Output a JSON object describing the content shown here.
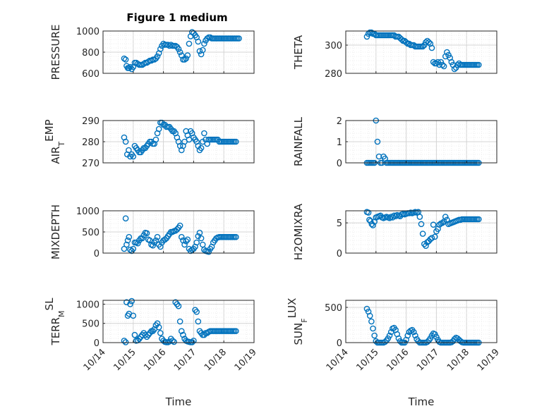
{
  "title": "Figure 1 medium",
  "marker_color": "#0072bd",
  "chart_data": [
    {
      "type": "scatter",
      "ylabel": "PRESSURE",
      "ylim": [
        600,
        1000
      ],
      "yticks": [
        600,
        800,
        1000
      ],
      "xlim": [
        0,
        5
      ],
      "xticks": [
        "10/14",
        "10/15",
        "10/16",
        "10/17",
        "10/18",
        "10/19"
      ],
      "xlabel": "",
      "x": [
        0.7,
        0.75,
        0.78,
        0.82,
        0.86,
        0.9,
        0.95,
        1.0,
        1.05,
        1.1,
        1.15,
        1.2,
        1.25,
        1.3,
        1.35,
        1.4,
        1.45,
        1.5,
        1.55,
        1.6,
        1.65,
        1.7,
        1.75,
        1.8,
        1.85,
        1.9,
        1.95,
        2.0,
        2.05,
        2.1,
        2.15,
        2.2,
        2.25,
        2.3,
        2.35,
        2.4,
        2.45,
        2.5,
        2.55,
        2.6,
        2.65,
        2.7,
        2.75,
        2.8,
        2.85,
        2.9,
        2.95,
        3.0,
        3.05,
        3.1,
        3.15,
        3.2,
        3.25,
        3.3,
        3.35,
        3.4,
        3.45,
        3.5,
        3.55,
        3.6,
        3.65,
        3.7,
        3.75,
        3.8,
        3.85,
        3.9,
        3.95,
        4.0,
        4.05,
        4.1,
        4.15,
        4.2,
        4.25,
        4.3,
        4.35,
        4.4,
        4.45,
        4.5
      ],
      "y": [
        740,
        730,
        670,
        650,
        650,
        660,
        640,
        660,
        700,
        700,
        690,
        680,
        680,
        680,
        690,
        700,
        700,
        710,
        720,
        720,
        730,
        730,
        740,
        760,
        790,
        830,
        860,
        880,
        870,
        870,
        870,
        860,
        870,
        860,
        860,
        860,
        850,
        830,
        800,
        770,
        730,
        730,
        740,
        770,
        880,
        950,
        990,
        980,
        960,
        940,
        900,
        810,
        780,
        820,
        880,
        910,
        930,
        940,
        940,
        930,
        930,
        930,
        930,
        930,
        930,
        930,
        930,
        930,
        930,
        930,
        930,
        930,
        930,
        930,
        930,
        930,
        930,
        930
      ]
    },
    {
      "type": "scatter",
      "ylabel": "THETA",
      "ylim": [
        280,
        310
      ],
      "yticks": [
        280,
        300
      ],
      "xlim": [
        0,
        5
      ],
      "xticks": [
        "10/14",
        "10/15",
        "10/16",
        "10/17",
        "10/18",
        "10/19"
      ],
      "xlabel": "",
      "x": [
        0.7,
        0.75,
        0.8,
        0.85,
        0.9,
        0.95,
        1.0,
        1.05,
        1.1,
        1.15,
        1.2,
        1.25,
        1.3,
        1.35,
        1.4,
        1.45,
        1.5,
        1.55,
        1.6,
        1.65,
        1.7,
        1.75,
        1.8,
        1.85,
        1.9,
        1.95,
        2.0,
        2.05,
        2.1,
        2.15,
        2.2,
        2.25,
        2.3,
        2.35,
        2.4,
        2.45,
        2.5,
        2.55,
        2.6,
        2.65,
        2.7,
        2.75,
        2.8,
        2.85,
        2.9,
        2.95,
        3.0,
        3.05,
        3.1,
        3.15,
        3.2,
        3.25,
        3.3,
        3.35,
        3.4,
        3.45,
        3.5,
        3.55,
        3.6,
        3.65,
        3.7,
        3.75,
        3.8,
        3.85,
        3.9,
        3.95,
        4.0,
        4.05,
        4.1,
        4.15,
        4.2,
        4.25,
        4.3,
        4.35,
        4.4
      ],
      "y": [
        306,
        308,
        309,
        309,
        308,
        308,
        307,
        307,
        307,
        307,
        307,
        307,
        307,
        307,
        307,
        307,
        307,
        307,
        307,
        306,
        306,
        306,
        305,
        304,
        303,
        303,
        302,
        301,
        301,
        300,
        300,
        300,
        299,
        299,
        299,
        299,
        299,
        299,
        300,
        302,
        303,
        302,
        301,
        298,
        288,
        287,
        287,
        288,
        286,
        288,
        286,
        285,
        292,
        295,
        293,
        291,
        288,
        286,
        283,
        284,
        286,
        287,
        286,
        286,
        286,
        286,
        286,
        286,
        286,
        286,
        286,
        286,
        286,
        286,
        286
      ]
    },
    {
      "type": "scatter",
      "ylabel": "AIR_TEMP",
      "ylim": [
        270,
        290
      ],
      "yticks": [
        270,
        280,
        290
      ],
      "xlim": [
        0,
        5
      ],
      "xticks": [
        "10/14",
        "10/15",
        "10/16",
        "10/17",
        "10/18",
        "10/19"
      ],
      "xlabel": "",
      "x": [
        0.7,
        0.75,
        0.8,
        0.85,
        0.9,
        0.95,
        1.0,
        1.05,
        1.1,
        1.15,
        1.2,
        1.25,
        1.3,
        1.35,
        1.4,
        1.45,
        1.5,
        1.55,
        1.6,
        1.65,
        1.7,
        1.75,
        1.8,
        1.85,
        1.9,
        1.95,
        2.0,
        2.05,
        2.1,
        2.15,
        2.2,
        2.25,
        2.3,
        2.35,
        2.4,
        2.45,
        2.5,
        2.55,
        2.6,
        2.65,
        2.7,
        2.75,
        2.8,
        2.85,
        2.9,
        2.95,
        3.0,
        3.05,
        3.1,
        3.15,
        3.2,
        3.25,
        3.3,
        3.35,
        3.4,
        3.45,
        3.5,
        3.55,
        3.6,
        3.65,
        3.7,
        3.75,
        3.8,
        3.85,
        3.9,
        3.95,
        4.0,
        4.05,
        4.1,
        4.15,
        4.2,
        4.25,
        4.3,
        4.35,
        4.4
      ],
      "y": [
        282,
        280,
        274,
        276,
        273,
        274,
        273,
        278,
        277,
        276,
        275,
        275,
        276,
        277,
        277,
        278,
        279,
        280,
        280,
        279,
        279,
        281,
        284,
        286,
        289,
        289,
        288,
        288,
        287,
        287,
        287,
        286,
        285,
        285,
        284,
        282,
        280,
        278,
        276,
        278,
        280,
        285,
        283,
        281,
        285,
        284,
        282,
        281,
        280,
        278,
        276,
        277,
        280,
        284,
        281,
        279,
        281,
        281,
        281,
        281,
        281,
        281,
        281,
        280,
        280,
        280,
        280,
        280,
        280,
        280,
        280,
        280,
        280,
        280,
        280
      ]
    },
    {
      "type": "scatter",
      "ylabel": "RAINFALL",
      "ylim": [
        0,
        2
      ],
      "yticks": [
        0,
        1,
        2
      ],
      "xlim": [
        0,
        5
      ],
      "xticks": [
        "10/14",
        "10/15",
        "10/16",
        "10/17",
        "10/18",
        "10/19"
      ],
      "xlabel": "",
      "x": [
        0.7,
        0.75,
        0.8,
        0.85,
        0.9,
        0.95,
        1.0,
        1.05,
        1.1,
        1.15,
        1.2,
        1.25,
        1.3,
        1.35,
        1.4,
        1.45,
        1.5,
        1.55,
        1.6,
        1.65,
        1.7,
        1.75,
        1.8,
        1.85,
        1.9,
        1.95,
        2.0,
        2.05,
        2.1,
        2.15,
        2.2,
        2.25,
        2.3,
        2.35,
        2.4,
        2.45,
        2.5,
        2.55,
        2.6,
        2.65,
        2.7,
        2.75,
        2.8,
        2.85,
        2.9,
        2.95,
        3.0,
        3.05,
        3.1,
        3.15,
        3.2,
        3.25,
        3.3,
        3.35,
        3.4,
        3.45,
        3.5,
        3.55,
        3.6,
        3.65,
        3.7,
        3.75,
        3.8,
        3.85,
        3.9,
        3.95,
        4.0,
        4.05,
        4.1,
        4.15,
        4.2,
        4.25,
        4.3,
        4.35,
        4.4
      ],
      "y": [
        0,
        0,
        0,
        0,
        0,
        0,
        2,
        1,
        0.3,
        0,
        0,
        0.3,
        0.2,
        0,
        0,
        0,
        0,
        0,
        0,
        0,
        0,
        0,
        0,
        0,
        0,
        0,
        0,
        0,
        0,
        0,
        0,
        0,
        0,
        0,
        0,
        0,
        0,
        0,
        0,
        0,
        0,
        0,
        0,
        0,
        0,
        0,
        0,
        0,
        0,
        0,
        0,
        0,
        0,
        0,
        0,
        0,
        0,
        0,
        0,
        0,
        0,
        0,
        0,
        0,
        0,
        0,
        0,
        0,
        0,
        0,
        0,
        0,
        0,
        0,
        0
      ]
    },
    {
      "type": "scatter",
      "ylabel": "MIXDEPTH",
      "ylim": [
        0,
        1000
      ],
      "yticks": [
        0,
        500,
        1000
      ],
      "xlim": [
        0,
        5
      ],
      "xticks": [
        "10/14",
        "10/15",
        "10/16",
        "10/17",
        "10/18",
        "10/19"
      ],
      "xlabel": "",
      "x": [
        0.7,
        0.75,
        0.78,
        0.82,
        0.86,
        0.9,
        0.95,
        1.0,
        1.05,
        1.1,
        1.15,
        1.2,
        1.25,
        1.3,
        1.35,
        1.4,
        1.45,
        1.5,
        1.55,
        1.6,
        1.65,
        1.7,
        1.75,
        1.8,
        1.85,
        1.9,
        1.95,
        2.0,
        2.05,
        2.1,
        2.15,
        2.2,
        2.25,
        2.3,
        2.35,
        2.4,
        2.45,
        2.5,
        2.55,
        2.6,
        2.65,
        2.7,
        2.75,
        2.8,
        2.85,
        2.9,
        2.95,
        3.0,
        3.05,
        3.1,
        3.15,
        3.2,
        3.25,
        3.3,
        3.35,
        3.4,
        3.45,
        3.5,
        3.55,
        3.6,
        3.65,
        3.7,
        3.75,
        3.8,
        3.85,
        3.9,
        3.95,
        4.0,
        4.05,
        4.1,
        4.15,
        4.2,
        4.25,
        4.3,
        4.35,
        4.4
      ],
      "y": [
        100,
        820,
        200,
        300,
        380,
        80,
        50,
        100,
        250,
        250,
        230,
        300,
        350,
        350,
        420,
        480,
        470,
        320,
        300,
        200,
        180,
        250,
        300,
        380,
        200,
        150,
        250,
        300,
        320,
        350,
        400,
        450,
        500,
        500,
        520,
        530,
        560,
        600,
        650,
        380,
        300,
        200,
        280,
        320,
        100,
        50,
        80,
        100,
        150,
        250,
        400,
        480,
        350,
        200,
        80,
        50,
        40,
        30,
        100,
        150,
        250,
        300,
        350,
        370,
        380,
        380,
        380,
        380,
        380,
        380,
        380,
        380,
        380,
        380,
        380,
        380
      ]
    },
    {
      "type": "scatter",
      "ylabel": "H2OMIXRA",
      "ylim": [
        0,
        7
      ],
      "yticks": [
        0,
        5
      ],
      "xlim": [
        0,
        5
      ],
      "xticks": [
        "10/14",
        "10/15",
        "10/16",
        "10/17",
        "10/18",
        "10/19"
      ],
      "xlabel": "",
      "x": [
        0.7,
        0.75,
        0.78,
        0.82,
        0.86,
        0.9,
        0.95,
        1.0,
        1.05,
        1.1,
        1.15,
        1.2,
        1.25,
        1.3,
        1.35,
        1.4,
        1.45,
        1.5,
        1.55,
        1.6,
        1.65,
        1.7,
        1.75,
        1.8,
        1.85,
        1.9,
        1.95,
        2.0,
        2.05,
        2.1,
        2.15,
        2.2,
        2.25,
        2.3,
        2.35,
        2.4,
        2.45,
        2.5,
        2.55,
        2.6,
        2.65,
        2.7,
        2.75,
        2.8,
        2.85,
        2.9,
        2.95,
        3.0,
        3.05,
        3.1,
        3.15,
        3.2,
        3.25,
        3.3,
        3.35,
        3.4,
        3.45,
        3.5,
        3.55,
        3.6,
        3.65,
        3.7,
        3.75,
        3.8,
        3.85,
        3.9,
        3.95,
        4.0,
        4.05,
        4.1,
        4.15,
        4.2,
        4.25,
        4.3,
        4.35,
        4.4
      ],
      "y": [
        6.8,
        6.7,
        5.5,
        5.3,
        4.8,
        4.6,
        5.2,
        5.9,
        6.0,
        6.1,
        6.2,
        5.9,
        5.8,
        5.9,
        6.0,
        5.9,
        5.8,
        6.0,
        5.9,
        6.2,
        6.1,
        6.3,
        6.2,
        6.1,
        6.4,
        6.5,
        6.4,
        6.5,
        6.6,
        6.6,
        6.7,
        6.6,
        6.7,
        6.8,
        6.7,
        6.8,
        6.0,
        4.8,
        3.2,
        1.5,
        1.2,
        1.8,
        2.0,
        2.3,
        2.5,
        4.7,
        2.7,
        3.6,
        4.0,
        4.7,
        4.9,
        5.0,
        5.2,
        6.0,
        5.5,
        4.8,
        4.9,
        5.0,
        5.1,
        5.2,
        5.3,
        5.4,
        5.5,
        5.5,
        5.6,
        5.6,
        5.6,
        5.6,
        5.6,
        5.6,
        5.6,
        5.6,
        5.6,
        5.6,
        5.6,
        5.6
      ]
    },
    {
      "type": "scatter",
      "ylabel": "TERR_MSL",
      "ylim": [
        0,
        1100
      ],
      "yticks": [
        0,
        500,
        1000
      ],
      "xlim": [
        0,
        5
      ],
      "xticks": [
        "10/14",
        "10/15",
        "10/16",
        "10/17",
        "10/18",
        "10/19"
      ],
      "xlabel": "Time",
      "x": [
        0.7,
        0.75,
        0.78,
        0.82,
        0.86,
        0.9,
        0.95,
        1.0,
        1.05,
        1.1,
        1.15,
        1.2,
        1.25,
        1.3,
        1.35,
        1.4,
        1.45,
        1.5,
        1.55,
        1.6,
        1.65,
        1.7,
        1.75,
        1.8,
        1.85,
        1.9,
        1.95,
        2.0,
        2.05,
        2.1,
        2.15,
        2.2,
        2.25,
        2.3,
        2.35,
        2.4,
        2.45,
        2.5,
        2.55,
        2.6,
        2.65,
        2.7,
        2.75,
        2.8,
        2.85,
        2.9,
        2.95,
        3.0,
        3.05,
        3.1,
        3.15,
        3.2,
        3.25,
        3.3,
        3.35,
        3.4,
        3.45,
        3.5,
        3.55,
        3.6,
        3.65,
        3.7,
        3.75,
        3.8,
        3.85,
        3.9,
        3.95,
        4.0,
        4.05,
        4.1,
        4.15,
        4.2,
        4.25,
        4.3,
        4.35,
        4.4
      ],
      "y": [
        50,
        10,
        1050,
        700,
        750,
        1000,
        1080,
        700,
        200,
        50,
        60,
        100,
        150,
        200,
        250,
        200,
        150,
        200,
        250,
        300,
        300,
        350,
        450,
        500,
        400,
        250,
        100,
        50,
        20,
        10,
        10,
        30,
        100,
        50,
        20,
        1050,
        1000,
        950,
        550,
        300,
        200,
        100,
        50,
        30,
        20,
        10,
        10,
        50,
        850,
        800,
        550,
        300,
        250,
        200,
        200,
        250,
        250,
        280,
        300,
        300,
        300,
        300,
        300,
        300,
        300,
        300,
        300,
        300,
        300,
        300,
        300,
        300,
        300,
        300,
        300,
        300
      ]
    },
    {
      "type": "scatter",
      "ylabel": "SUN_FLUX",
      "ylim": [
        0,
        600
      ],
      "yticks": [
        0,
        500
      ],
      "xlim": [
        0,
        5
      ],
      "xticks": [
        "10/14",
        "10/15",
        "10/16",
        "10/17",
        "10/18",
        "10/19"
      ],
      "xlabel": "Time",
      "x": [
        0.7,
        0.75,
        0.8,
        0.85,
        0.9,
        0.95,
        1.0,
        1.05,
        1.1,
        1.15,
        1.2,
        1.25,
        1.3,
        1.35,
        1.4,
        1.45,
        1.5,
        1.55,
        1.6,
        1.65,
        1.7,
        1.75,
        1.8,
        1.85,
        1.9,
        1.95,
        2.0,
        2.05,
        2.1,
        2.15,
        2.2,
        2.25,
        2.3,
        2.35,
        2.4,
        2.45,
        2.5,
        2.55,
        2.6,
        2.65,
        2.7,
        2.75,
        2.8,
        2.85,
        2.9,
        2.95,
        3.0,
        3.05,
        3.1,
        3.15,
        3.2,
        3.25,
        3.3,
        3.35,
        3.4,
        3.45,
        3.5,
        3.55,
        3.6,
        3.65,
        3.7,
        3.75,
        3.8,
        3.85,
        3.9,
        3.95,
        4.0,
        4.05,
        4.1,
        4.15,
        4.2,
        4.25,
        4.3,
        4.35,
        4.4
      ],
      "y": [
        480,
        440,
        380,
        300,
        200,
        100,
        20,
        0,
        0,
        0,
        0,
        0,
        10,
        30,
        60,
        100,
        150,
        200,
        210,
        180,
        120,
        60,
        20,
        0,
        0,
        0,
        40,
        100,
        150,
        170,
        180,
        150,
        100,
        50,
        20,
        0,
        0,
        0,
        0,
        0,
        10,
        30,
        60,
        100,
        130,
        120,
        80,
        40,
        10,
        0,
        0,
        0,
        0,
        0,
        0,
        0,
        5,
        20,
        50,
        70,
        60,
        40,
        20,
        5,
        0,
        0,
        0,
        0,
        0,
        0,
        0,
        0,
        0,
        0,
        0
      ]
    }
  ]
}
